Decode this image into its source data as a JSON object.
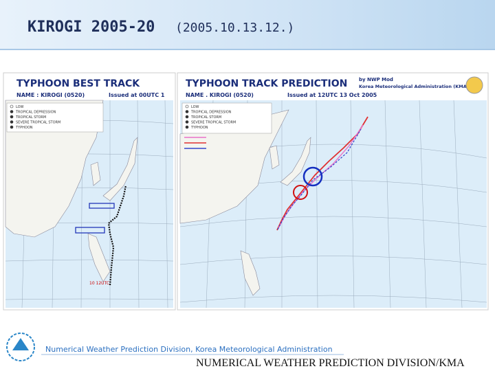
{
  "header": {
    "title": "KIROGI 2005-20",
    "subtitle": "(2005.10.13.12.)"
  },
  "panels": [
    {
      "title": "TYPHOON BEST TRACK",
      "name": "NAME : KIROGI (0520)",
      "issued": "Issued at 00UTC 1",
      "legend": [
        "LOW",
        "TROPICAL DEPRESSION",
        "TROPICAL STORM",
        "SEVERE TROPICAL STORM",
        "TYPHOON"
      ],
      "annotation": "10 12UTC"
    },
    {
      "title": "TYPHOON TRACK PREDICTION",
      "name": "NAME . KIROGI (0520)",
      "issued": "Issued at 12UTC 13 Oct 2005",
      "credit": [
        "by NWP Mod",
        "Korea Meteorological Administration (KMA)"
      ],
      "legend": [
        "LOW",
        "TROPICAL DEPRESSION",
        "TROPICAL STORM",
        "SEVERE TROPICAL STORM",
        "TYPHOON"
      ]
    }
  ],
  "footer": {
    "division": "Numerical Weather Prediction Division, Korea Meteorological Administration",
    "banner": "NUMERICAL WEATHER PREDICTION DIVISION/KMA"
  }
}
